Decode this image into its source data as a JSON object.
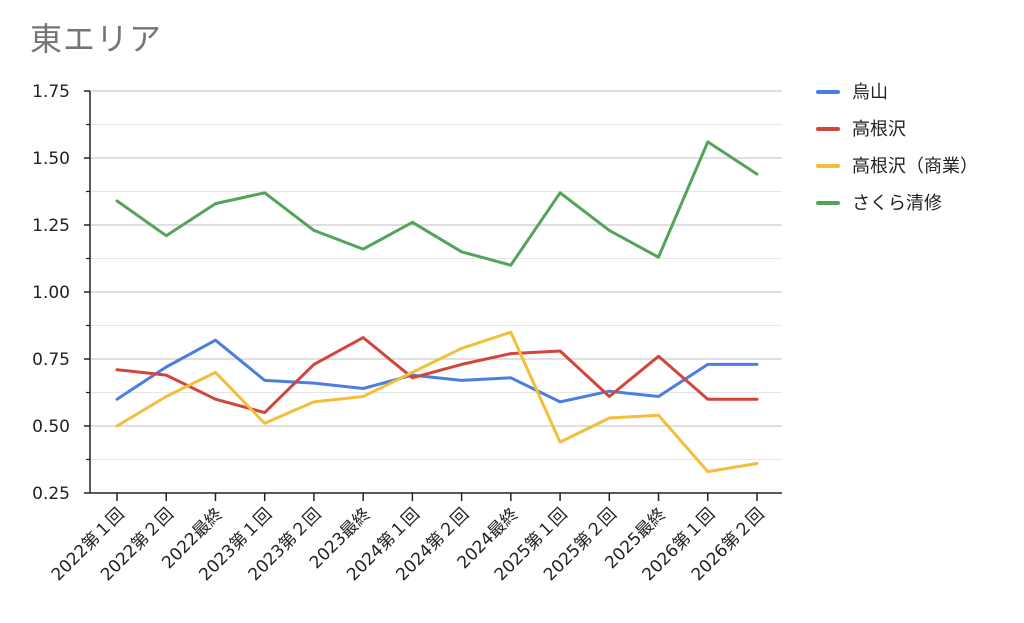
{
  "chart_data": {
    "type": "line",
    "title": "東エリア",
    "xlabel": "",
    "ylabel": "",
    "ylim": [
      0.25,
      1.75
    ],
    "yticks": [
      "0.25",
      "0.50",
      "0.75",
      "1.00",
      "1.25",
      "1.50",
      "1.75"
    ],
    "grid": true,
    "legend_position": "right",
    "categories": [
      "2022第１回",
      "2022第２回",
      "2022最終",
      "2023第１回",
      "2023第２回",
      "2023最終",
      "2024第１回",
      "2024第２回",
      "2024最終",
      "2025第１回",
      "2025第２回",
      "2025最終",
      "2026第１回",
      "2026第２回"
    ],
    "series": [
      {
        "name": "烏山",
        "color": "#4a7fe0",
        "values": [
          0.6,
          0.72,
          0.82,
          0.67,
          0.66,
          0.64,
          0.69,
          0.67,
          0.68,
          0.59,
          0.63,
          0.61,
          0.73,
          0.73
        ]
      },
      {
        "name": "高根沢",
        "color": "#d1453b",
        "values": [
          0.71,
          0.69,
          0.6,
          0.55,
          0.73,
          0.83,
          0.68,
          0.73,
          0.77,
          0.78,
          0.61,
          0.76,
          0.6,
          0.6
        ]
      },
      {
        "name": "高根沢（商業）",
        "color": "#f2be3c",
        "values": [
          0.5,
          0.61,
          0.7,
          0.51,
          0.59,
          0.61,
          0.7,
          0.79,
          0.85,
          0.44,
          0.53,
          0.54,
          0.33,
          0.36
        ]
      },
      {
        "name": "さくら清修",
        "color": "#53a458",
        "values": [
          1.34,
          1.21,
          1.33,
          1.37,
          1.23,
          1.16,
          1.26,
          1.15,
          1.1,
          1.37,
          1.23,
          1.13,
          1.56,
          1.44
        ]
      }
    ]
  }
}
